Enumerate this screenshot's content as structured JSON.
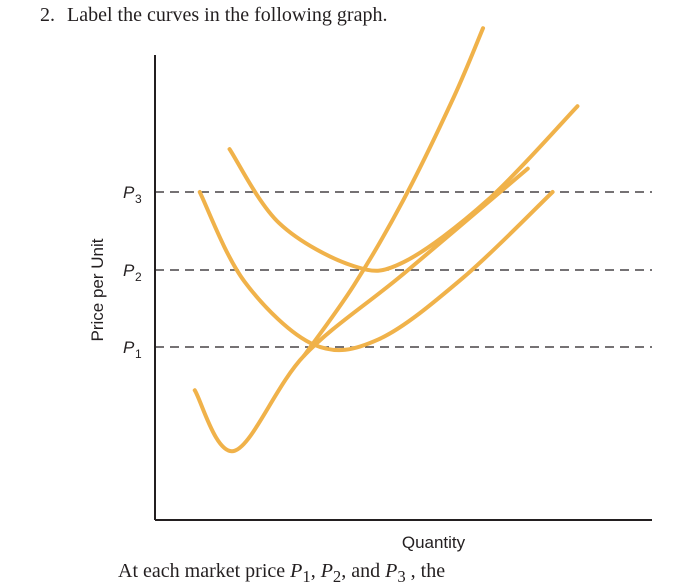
{
  "question": {
    "number": "2.",
    "text": "Label the curves in the following graph."
  },
  "footer": {
    "text_a": "At each market price ",
    "p1": "P",
    "text_b": ", ",
    "p2": "P",
    "text_c": ", and ",
    "p3": "P",
    "text_d": " , the"
  },
  "colors": {
    "curve": "#f0b24a",
    "axis": "#231f20",
    "dash": "#231f20"
  },
  "chart_data": {
    "type": "line",
    "title": "",
    "xlabel": "Quantity",
    "ylabel": "Price per Unit",
    "price_levels": [
      {
        "label": "P",
        "sub": "1",
        "value": 1
      },
      {
        "label": "P",
        "sub": "2",
        "value": 2
      },
      {
        "label": "P",
        "sub": "3",
        "value": 3
      }
    ],
    "curves": [
      {
        "shape": "U",
        "points": [
          [
            0.8,
            0.75
          ],
          [
            1.6,
            0.4
          ],
          [
            3.0,
            0.95
          ],
          [
            5.0,
            1.95
          ],
          [
            7.5,
            3.3
          ]
        ]
      },
      {
        "shape": "U",
        "points": [
          [
            0.9,
            3.0
          ],
          [
            1.8,
            1.85
          ],
          [
            3.2,
            1.03
          ],
          [
            4.5,
            1.1
          ],
          [
            6.2,
            1.9
          ],
          [
            8.0,
            3.0
          ]
        ]
      },
      {
        "shape": "U",
        "points": [
          [
            1.5,
            3.55
          ],
          [
            2.5,
            2.6
          ],
          [
            4.0,
            2.05
          ],
          [
            5.0,
            2.1
          ],
          [
            6.7,
            2.9
          ],
          [
            8.5,
            4.1
          ]
        ]
      },
      {
        "shape": "rising",
        "points": [
          [
            3.0,
            0.95
          ],
          [
            4.0,
            1.8
          ],
          [
            5.0,
            2.9
          ],
          [
            6.0,
            4.2
          ],
          [
            6.6,
            5.1
          ]
        ]
      }
    ],
    "xlim": [
      0,
      10
    ],
    "ylim": [
      0,
      6
    ],
    "grid": false
  }
}
